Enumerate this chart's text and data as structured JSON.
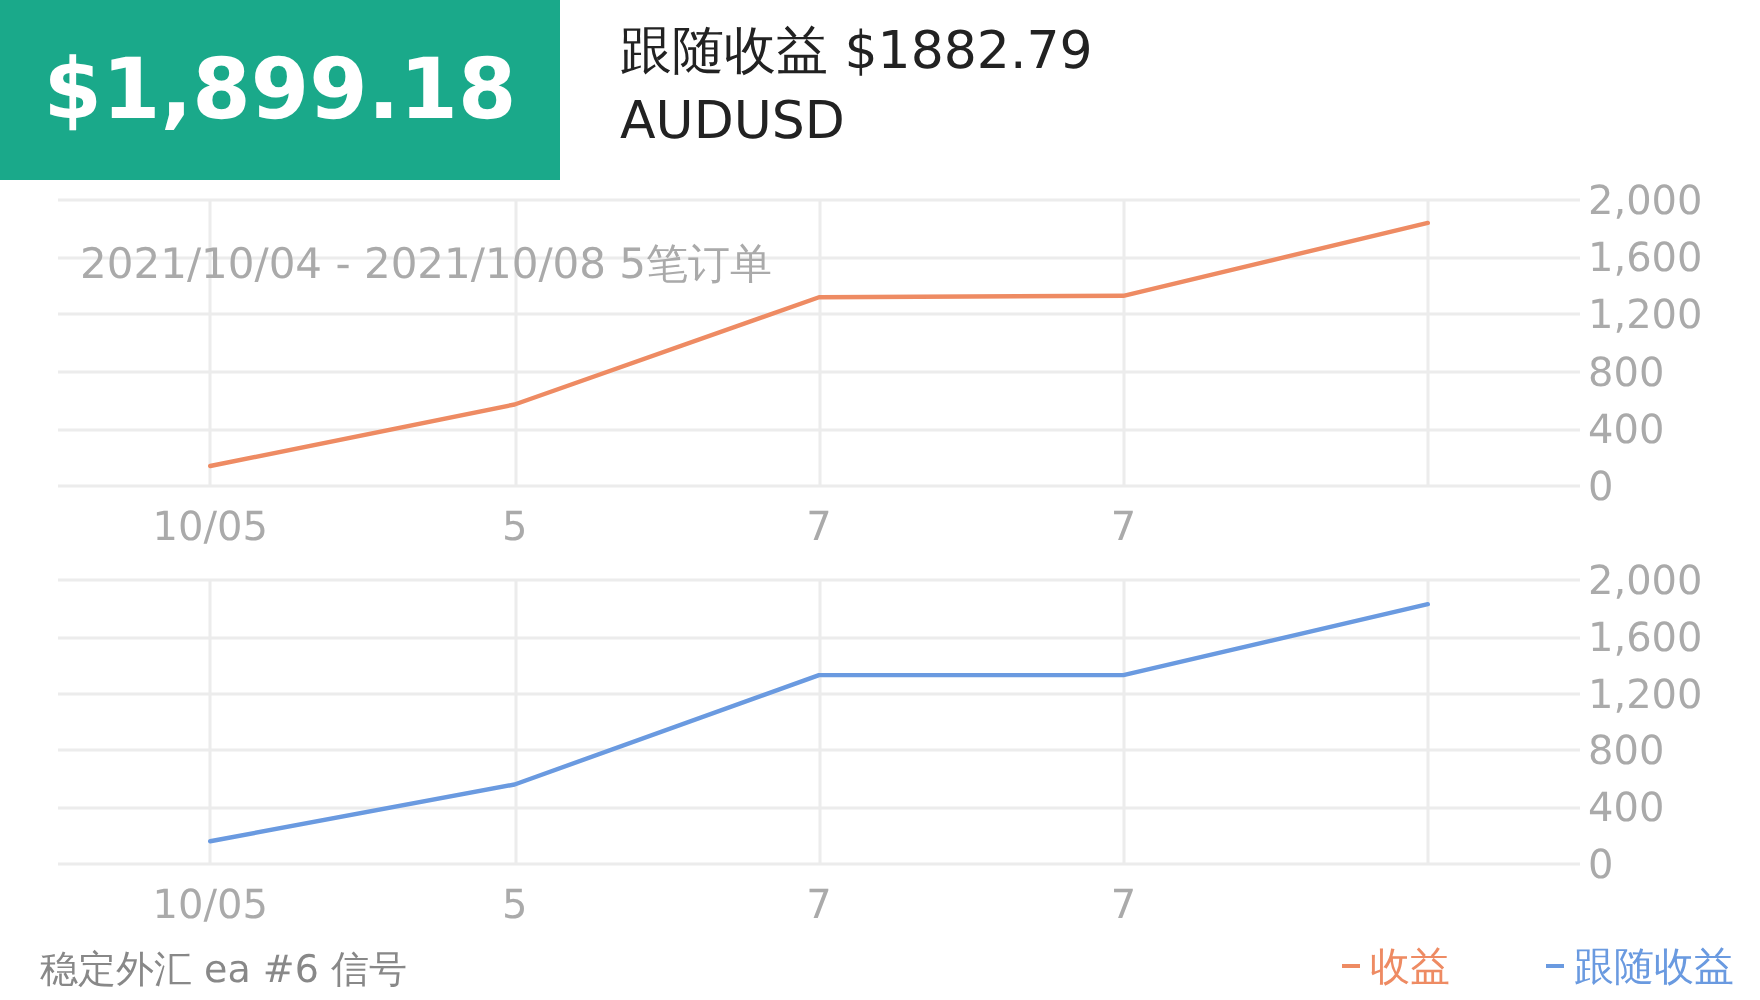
{
  "chart_data": [
    {
      "type": "line",
      "title": "$1,899.18",
      "annotations": [
        "跟随收益 $1882.79",
        "AUDUSD"
      ],
      "subtitle": "2021/10/04 - 2021/10/08 5笔订单",
      "categories": [
        "10/05",
        "5",
        "7",
        "7",
        null
      ],
      "series": [
        {
          "name": "收益",
          "color": "#ee8b63",
          "values": [
            140,
            570,
            1320,
            1330,
            1840
          ]
        }
      ],
      "ylim": [
        0,
        2000
      ],
      "yticks": [
        0,
        400,
        800,
        {
          "value": 1200,
          "label": "1,200"
        },
        {
          "value": 1600,
          "label": "1,600"
        },
        {
          "value": 2000,
          "label": "2,000"
        }
      ],
      "grid": true,
      "marker": "none",
      "line_style": "solid",
      "legend": "bottom right"
    },
    {
      "type": "line",
      "annotations": [
        "稳定外汇 ea #6 信号"
      ],
      "categories": [
        "10/05",
        "5",
        "7",
        "7",
        null
      ],
      "series": [
        {
          "name": "跟随收益",
          "color": "#6a9ae0",
          "values": [
            160,
            560,
            1330,
            1330,
            1830
          ]
        }
      ],
      "ylim": [
        0,
        2000
      ],
      "yticks": [
        0,
        400,
        800,
        {
          "value": 1200,
          "label": "1,200"
        },
        {
          "value": 1600,
          "label": "1,600"
        },
        {
          "value": 2000,
          "label": "2,000"
        }
      ],
      "grid": true,
      "marker": "none",
      "line_style": "solid",
      "legend": "bottom right"
    }
  ]
}
